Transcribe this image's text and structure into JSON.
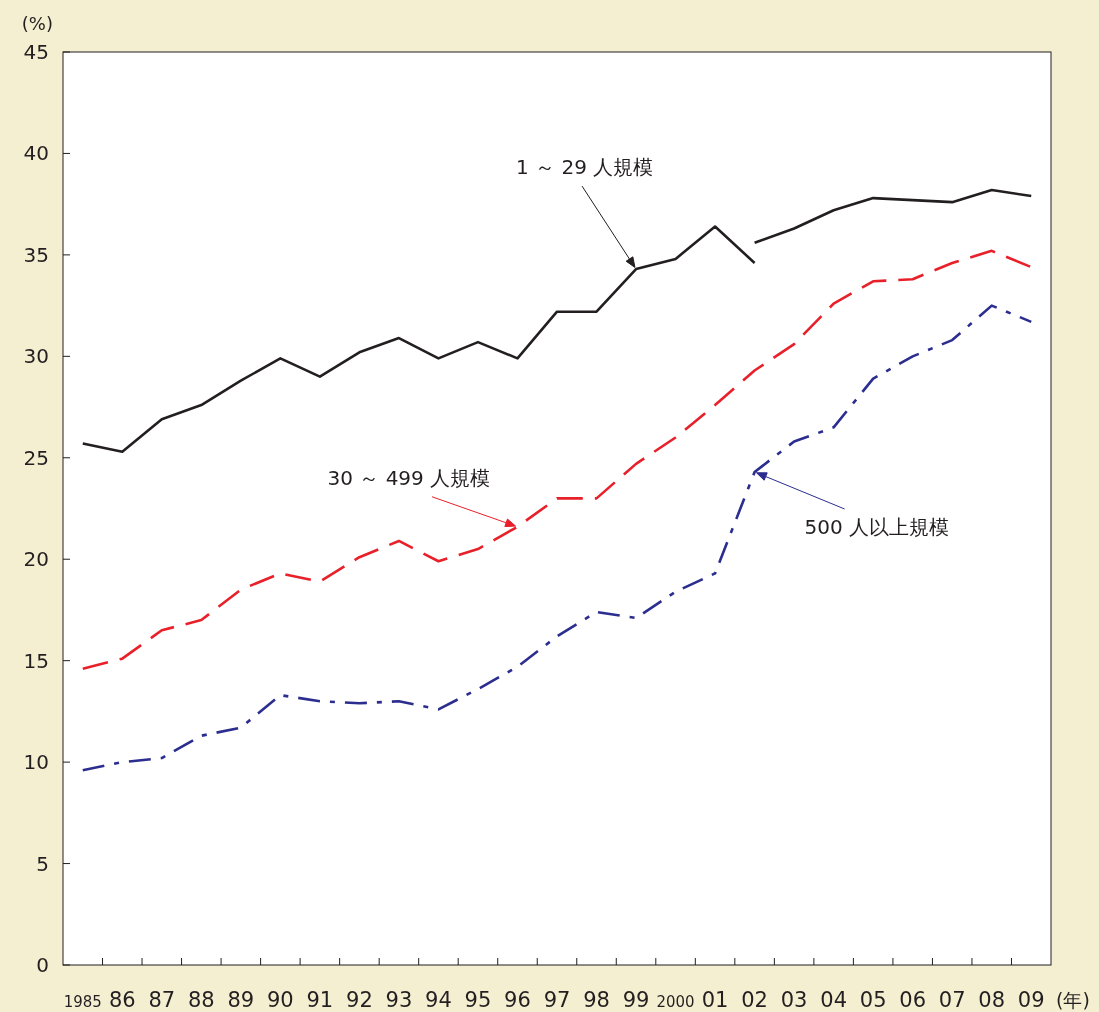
{
  "chart_data": {
    "type": "line",
    "ylabel": "(%)",
    "xlabel": "(年)",
    "categories": [
      "1985",
      "86",
      "87",
      "88",
      "89",
      "90",
      "91",
      "92",
      "93",
      "94",
      "95",
      "96",
      "97",
      "98",
      "99",
      "2000",
      "01",
      "02",
      "03",
      "04",
      "05",
      "06",
      "07",
      "08",
      "09"
    ],
    "series": [
      {
        "name": "1 ～ 29 人規模",
        "color": "#231f20",
        "line_style": "solid",
        "values": [
          25.7,
          25.3,
          26.9,
          27.6,
          28.8,
          29.9,
          29.0,
          30.2,
          30.9,
          29.9,
          30.7,
          29.9,
          32.2,
          32.2,
          34.3,
          34.8,
          36.4,
          34.6,
          null,
          null,
          null,
          null,
          null,
          null,
          null
        ]
      },
      {
        "color": "#231f20",
        "line_style": "solid",
        "values": [
          null,
          null,
          null,
          null,
          null,
          null,
          null,
          null,
          null,
          null,
          null,
          null,
          null,
          null,
          null,
          null,
          null,
          35.6,
          36.3,
          37.2,
          37.8,
          37.7,
          37.6,
          38.2,
          37.9
        ]
      },
      {
        "name": "30 ～ 499 人規模",
        "color": "#e8202a",
        "line_style": "dashed",
        "values": [
          14.6,
          15.1,
          16.5,
          17.0,
          18.5,
          19.3,
          18.9,
          20.1,
          20.9,
          19.9,
          20.5,
          21.6,
          23.0,
          23.0,
          24.7,
          26.0,
          27.6,
          29.3,
          30.6,
          32.6,
          33.7,
          33.8,
          34.6,
          35.2,
          34.4
        ]
      },
      {
        "name": "500 人以上規模",
        "color": "#2b2d8f",
        "line_style": "dashdot",
        "values": [
          9.6,
          10.0,
          10.2,
          11.3,
          11.7,
          13.3,
          13.0,
          12.9,
          13.0,
          12.6,
          13.6,
          14.7,
          16.2,
          17.4,
          17.1,
          18.4,
          19.3,
          24.3,
          25.8,
          26.5,
          28.9,
          30.0,
          30.8,
          32.5,
          31.7
        ]
      }
    ],
    "ylim": [
      0,
      45
    ],
    "yticks": [
      0,
      5,
      10,
      15,
      20,
      25,
      30,
      35,
      40,
      45
    ],
    "grid": false,
    "marker": "none"
  }
}
